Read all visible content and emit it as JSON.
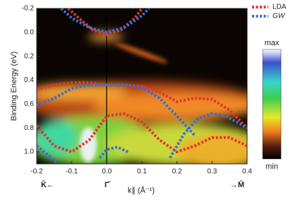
{
  "chart_data": {
    "type": "line",
    "xlabel": "k∥ (Å⁻¹)",
    "ylabel": "Binding Energy (eV)",
    "point_labels": [
      "K̄←",
      "Γ̄",
      "→M̄"
    ],
    "point_positions": [
      -0.2,
      0.0,
      0.4
    ],
    "colorbar_labels": [
      "max",
      "min"
    ],
    "xlim": [
      -0.2,
      0.4
    ],
    "ylim": [
      -0.2,
      1.1
    ],
    "y_inverted": true,
    "xticks": [
      {
        "value": -0.2,
        "label": "-0.2"
      },
      {
        "value": -0.1,
        "label": "-0.1"
      },
      {
        "value": 0,
        "label": "0.0"
      },
      {
        "value": 0.1,
        "label": "0.1"
      },
      {
        "value": 0.2,
        "label": "0.2"
      },
      {
        "value": 0.3,
        "label": "0.3"
      },
      {
        "value": 0.4,
        "label": "0.4"
      }
    ],
    "yticks": [
      {
        "value": -0.2,
        "label": "-0.2"
      },
      {
        "value": 0,
        "label": "0.0"
      },
      {
        "value": 0.2,
        "label": "0.2"
      },
      {
        "value": 0.4,
        "label": "0.4"
      },
      {
        "value": 0.6,
        "label": "0.6"
      },
      {
        "value": 0.8,
        "label": "0.8"
      },
      {
        "value": 1.0,
        "label": "1.0"
      }
    ],
    "series": [
      {
        "name": "LDA",
        "color": "#e8342c",
        "curves": [
          {
            "x": [
              -0.11,
              -0.08,
              -0.04,
              0,
              0.04,
              0.08,
              0.1
            ],
            "values": [
              -0.2,
              -0.12,
              -0.02,
              0.02,
              -0.02,
              -0.12,
              -0.2
            ]
          },
          {
            "x": [
              -0.2,
              -0.15,
              -0.1,
              -0.05,
              0,
              0.05,
              0.1,
              0.15,
              0.2,
              0.25,
              0.3,
              0.35,
              0.4
            ],
            "values": [
              0.48,
              0.44,
              0.42,
              0.42,
              0.44,
              0.44,
              0.45,
              0.5,
              0.58,
              0.55,
              0.56,
              0.65,
              0.8
            ]
          },
          {
            "x": [
              -0.2,
              -0.15,
              -0.1,
              -0.05,
              0,
              0.05,
              0.1,
              0.15,
              0.2,
              0.25,
              0.3,
              0.35,
              0.4
            ],
            "values": [
              0.78,
              0.95,
              1.0,
              0.9,
              0.7,
              0.68,
              0.75,
              0.9,
              1.0,
              0.95,
              0.88,
              0.88,
              0.95
            ]
          }
        ]
      },
      {
        "name": "GW",
        "color": "#3a6fd8",
        "curves": [
          {
            "x": [
              -0.13,
              -0.1,
              -0.05,
              0,
              0.05,
              0.1,
              0.12
            ],
            "values": [
              -0.2,
              -0.12,
              -0.04,
              0.0,
              -0.04,
              -0.14,
              -0.2
            ]
          },
          {
            "x": [
              -0.2,
              -0.15,
              -0.1,
              -0.05,
              0,
              0.05,
              0.1,
              0.15,
              0.2,
              0.25
            ],
            "values": [
              0.61,
              0.55,
              0.47,
              0.44,
              0.44,
              0.44,
              0.46,
              0.55,
              0.7,
              0.86
            ]
          },
          {
            "x": [
              0.18,
              0.22,
              0.26,
              0.3,
              0.34,
              0.4
            ],
            "values": [
              1.05,
              0.85,
              0.72,
              0.68,
              0.7,
              0.8
            ]
          },
          {
            "x": [
              -0.2,
              -0.17,
              -0.14
            ],
            "values": [
              0.95,
              1.02,
              1.1
            ]
          },
          {
            "x": [
              -0.02,
              0,
              0.03,
              0.06
            ],
            "values": [
              1.05,
              0.98,
              0.96,
              1.0
            ]
          }
        ]
      }
    ]
  }
}
